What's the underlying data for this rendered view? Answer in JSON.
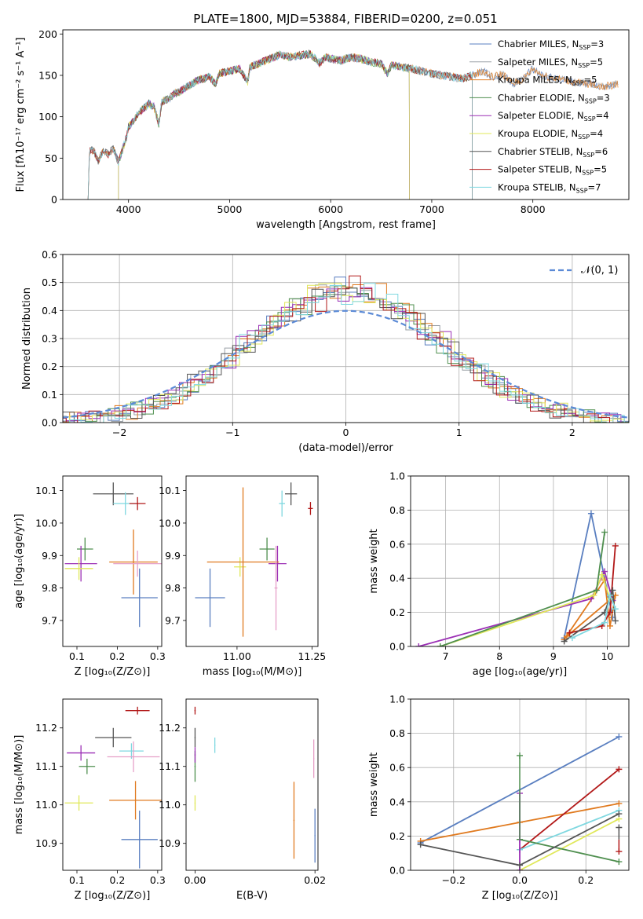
{
  "title": "PLATE=1800, MJD=53884, FIBERID=0200, z=0.051",
  "colors": {
    "chabrier_miles": "#5a7fc0",
    "salpeter_miles": "#9aa0a6",
    "kroupa_miles": "#e07a1f",
    "chabrier_elodie": "#4f8f4f",
    "salpeter_elodie": "#9b2fb5",
    "kroupa_elodie": "#e0e85a",
    "chabrier_stelib": "#555555",
    "salpeter_stelib": "#b21818",
    "kroupa_stelib": "#7fd8e0",
    "normal": "#5b8ad6",
    "pink": "#e6a0c8"
  },
  "chart_data": [
    {
      "type": "line",
      "title": "PLATE=1800, MJD=53884, FIBERID=0200, z=0.051",
      "xlabel": "wavelength [Angstrom, rest frame]",
      "ylabel": "Flux [fλ10⁻¹⁷ erg cm⁻² s⁻¹ A⁻¹]",
      "xlim": [
        3350,
        8950
      ],
      "ylim": [
        0,
        205
      ],
      "xticks": [
        "4000",
        "5000",
        "6000",
        "7000",
        "8000"
      ],
      "yticks": [
        "0",
        "50",
        "100",
        "150",
        "200"
      ],
      "grid": false,
      "legend_position": "top-right",
      "spectrum_points": [
        [
          3610,
          45
        ],
        [
          3620,
          61
        ],
        [
          3660,
          58
        ],
        [
          3700,
          46
        ],
        [
          3750,
          60
        ],
        [
          3800,
          55
        ],
        [
          3850,
          62
        ],
        [
          3900,
          45
        ],
        [
          3940,
          60
        ],
        [
          3980,
          75
        ],
        [
          4000,
          88
        ],
        [
          4050,
          95
        ],
        [
          4100,
          105
        ],
        [
          4150,
          110
        ],
        [
          4200,
          116
        ],
        [
          4250,
          113
        ],
        [
          4300,
          92
        ],
        [
          4330,
          118
        ],
        [
          4400,
          122
        ],
        [
          4450,
          128
        ],
        [
          4500,
          130
        ],
        [
          4600,
          138
        ],
        [
          4700,
          145
        ],
        [
          4800,
          148
        ],
        [
          4860,
          140
        ],
        [
          4900,
          152
        ],
        [
          5000,
          155
        ],
        [
          5100,
          158
        ],
        [
          5180,
          142
        ],
        [
          5200,
          160
        ],
        [
          5300,
          165
        ],
        [
          5400,
          170
        ],
        [
          5500,
          175
        ],
        [
          5600,
          172
        ],
        [
          5700,
          174
        ],
        [
          5800,
          176
        ],
        [
          5890,
          165
        ],
        [
          5950,
          172
        ],
        [
          6000,
          170
        ],
        [
          6100,
          168
        ],
        [
          6200,
          172
        ],
        [
          6300,
          170
        ],
        [
          6400,
          166
        ],
        [
          6500,
          164
        ],
        [
          6563,
          152
        ],
        [
          6600,
          162
        ],
        [
          6700,
          160
        ],
        [
          6800,
          158
        ],
        [
          6900,
          155
        ],
        [
          7000,
          152
        ],
        [
          7100,
          150
        ],
        [
          7200,
          148
        ],
        [
          7300,
          146
        ],
        [
          7400,
          150
        ],
        [
          7500,
          155
        ],
        [
          7600,
          148
        ],
        [
          7700,
          152
        ],
        [
          7800,
          140
        ],
        [
          7900,
          145
        ],
        [
          8000,
          158
        ],
        [
          8100,
          150
        ],
        [
          8200,
          147
        ],
        [
          8300,
          145
        ],
        [
          8400,
          142
        ],
        [
          8500,
          140
        ],
        [
          8600,
          139
        ],
        [
          8700,
          136
        ],
        [
          8850,
          140
        ]
      ],
      "series": [
        {
          "name": "Chabrier MILES, N",
          "sub": "SSP",
          "suffix": "=3",
          "color_key": "chabrier_miles"
        },
        {
          "name": "Salpeter MILES, N",
          "sub": "SSP",
          "suffix": "=5",
          "color_key": "salpeter_miles"
        },
        {
          "name": "Kroupa MILES, N",
          "sub": "SSP",
          "suffix": "=5",
          "color_key": "kroupa_miles"
        },
        {
          "name": "Chabrier ELODIE, N",
          "sub": "SSP",
          "suffix": "=3",
          "color_key": "chabrier_elodie"
        },
        {
          "name": "Salpeter ELODIE, N",
          "sub": "SSP",
          "suffix": "=4",
          "color_key": "salpeter_elodie"
        },
        {
          "name": "Kroupa ELODIE, N",
          "sub": "SSP",
          "suffix": "=4",
          "color_key": "kroupa_elodie"
        },
        {
          "name": "Chabrier STELIB, N",
          "sub": "SSP",
          "suffix": "=6",
          "color_key": "chabrier_stelib"
        },
        {
          "name": "Salpeter STELIB, N",
          "sub": "SSP",
          "suffix": "=5",
          "color_key": "salpeter_stelib"
        },
        {
          "name": "Kroupa STELIB, N",
          "sub": "SSP",
          "suffix": "=7",
          "color_key": "kroupa_stelib"
        }
      ],
      "range_start": {
        "miles": 3600,
        "elodie": 3900,
        "stelib": 3600
      },
      "range_end": {
        "miles": 8900,
        "elodie": 6780,
        "stelib": 7400
      }
    },
    {
      "type": "histogram",
      "xlabel": "(data-model)/error",
      "ylabel": "Normed distribution",
      "xlim": [
        -2.5,
        2.5
      ],
      "ylim": [
        0,
        0.6
      ],
      "xticks": [
        "−2",
        "−1",
        "0",
        "1",
        "2"
      ],
      "yticks": [
        "0.0",
        "0.1",
        "0.2",
        "0.3",
        "0.4",
        "0.5",
        "0.6"
      ],
      "grid": true,
      "legend_label": "𝒩(0, 1)",
      "normal_curve": {
        "mean": 0,
        "sigma": 1
      }
    },
    {
      "type": "scatter",
      "xlabel": "Z [log₁₀(Z/Z⊙)]",
      "ylabel": "age  [log₁₀(age/yr)]",
      "xlim": [
        0.065,
        0.31
      ],
      "ylim": [
        9.62,
        10.145
      ],
      "xticks": [
        "0.1",
        "0.2",
        "0.3"
      ],
      "yticks": [
        "9.7",
        "9.8",
        "9.9",
        "10.0",
        "10.1"
      ],
      "points": [
        {
          "c": "chabrier_stelib",
          "x": 0.19,
          "y": 10.09,
          "ex": 0.05,
          "ey": 0.035
        },
        {
          "c": "kroupa_stelib",
          "x": 0.22,
          "y": 10.06,
          "ex": 0.03,
          "ey": 0.035
        },
        {
          "c": "salpeter_stelib",
          "x": 0.25,
          "y": 10.06,
          "ex": 0.02,
          "ey": 0.02
        },
        {
          "c": "chabrier_elodie",
          "x": 0.12,
          "y": 9.92,
          "ex": 0.02,
          "ey": 0.035
        },
        {
          "c": "salpeter_elodie",
          "x": 0.11,
          "y": 9.875,
          "ex": 0.04,
          "ey": 0.055
        },
        {
          "c": "kroupa_elodie",
          "x": 0.105,
          "y": 9.86,
          "ex": 0.035,
          "ey": 0.035
        },
        {
          "c": "kroupa_miles",
          "x": 0.24,
          "y": 9.88,
          "ex": 0.06,
          "ey": 0.1
        },
        {
          "c": "pink",
          "x": 0.25,
          "y": 9.875,
          "ex": 0.06,
          "ey": 0.04
        },
        {
          "c": "chabrier_miles",
          "x": 0.255,
          "y": 9.77,
          "ex": 0.045,
          "ey": 0.09
        }
      ]
    },
    {
      "type": "scatter",
      "xlabel": "mass [log₁₀(M/M⊙)]",
      "ylabel": "",
      "xlim": [
        10.83,
        11.27
      ],
      "ylim": [
        9.62,
        10.145
      ],
      "xticks": [
        "11.00",
        "11.25"
      ],
      "yticks": [
        "9.7",
        "9.8",
        "9.9",
        "10.0",
        "10.1"
      ],
      "points": [
        {
          "c": "chabrier_stelib",
          "x": 11.18,
          "y": 10.09,
          "ex": 0.02,
          "ey": 0.035
        },
        {
          "c": "kroupa_stelib",
          "x": 11.15,
          "y": 10.06,
          "ex": 0.01,
          "ey": 0.04
        },
        {
          "c": "salpeter_stelib",
          "x": 11.245,
          "y": 10.045,
          "ex": 0.008,
          "ey": 0.02
        },
        {
          "c": "chabrier_elodie",
          "x": 11.1,
          "y": 9.92,
          "ex": 0.025,
          "ey": 0.035
        },
        {
          "c": "salpeter_elodie",
          "x": 11.135,
          "y": 9.875,
          "ex": 0.03,
          "ey": 0.055
        },
        {
          "c": "kroupa_elodie",
          "x": 11.01,
          "y": 9.865,
          "ex": 0.02,
          "ey": 0.03
        },
        {
          "c": "kroupa_miles",
          "x": 11.02,
          "y": 9.88,
          "ex": 0.12,
          "ey": 0.23
        },
        {
          "c": "pink",
          "x": 11.13,
          "y": 9.8,
          "ex": 0.005,
          "ey": 0.13
        },
        {
          "c": "chabrier_miles",
          "x": 10.91,
          "y": 9.77,
          "ex": 0.05,
          "ey": 0.09
        }
      ]
    },
    {
      "type": "line",
      "xlabel": "age  [log₁₀(age/yr)]",
      "ylabel": "mass weight",
      "xlim": [
        6.35,
        10.4
      ],
      "ylim": [
        0,
        1
      ],
      "xticks": [
        "7",
        "8",
        "9",
        "10"
      ],
      "yticks": [
        "0.0",
        "0.2",
        "0.4",
        "0.6",
        "0.8",
        "1.0"
      ],
      "grid": true,
      "series": [
        {
          "c": "chabrier_miles",
          "pts": [
            [
              9.2,
              0.05
            ],
            [
              9.7,
              0.78
            ],
            [
              10.1,
              0.17
            ]
          ]
        },
        {
          "c": "kroupa_miles",
          "pts": [
            [
              9.2,
              0.04
            ],
            [
              9.95,
              0.39
            ],
            [
              10.05,
              0.12
            ],
            [
              10.15,
              0.3
            ],
            [
              9.25,
              0.06
            ]
          ]
        },
        {
          "c": "salpeter_elodie",
          "pts": [
            [
              6.5,
              0.0
            ],
            [
              9.7,
              0.28
            ],
            [
              9.95,
              0.44
            ],
            [
              10.1,
              0.27
            ]
          ]
        },
        {
          "c": "kroupa_elodie",
          "pts": [
            [
              6.9,
              0.0
            ],
            [
              9.75,
              0.3
            ],
            [
              9.9,
              0.42
            ],
            [
              10.05,
              0.28
            ]
          ]
        },
        {
          "c": "chabrier_elodie",
          "pts": [
            [
              6.9,
              0.0
            ],
            [
              9.8,
              0.33
            ],
            [
              9.95,
              0.67
            ]
          ]
        },
        {
          "c": "salpeter_stelib",
          "pts": [
            [
              9.3,
              0.08
            ],
            [
              9.9,
              0.12
            ],
            [
              10.05,
              0.2
            ],
            [
              10.15,
              0.59
            ]
          ]
        },
        {
          "c": "chabrier_stelib",
          "pts": [
            [
              9.2,
              0.03
            ],
            [
              9.95,
              0.2
            ],
            [
              10.1,
              0.33
            ],
            [
              10.15,
              0.15
            ]
          ]
        },
        {
          "c": "kroupa_stelib",
          "pts": [
            [
              9.35,
              0.05
            ],
            [
              9.95,
              0.14
            ],
            [
              10.05,
              0.3
            ],
            [
              10.15,
              0.22
            ]
          ]
        }
      ]
    },
    {
      "type": "scatter",
      "xlabel": "Z [log₁₀(Z/Z⊙)]",
      "ylabel": "mass [log₁₀(M/M⊙)]",
      "xlim": [
        0.065,
        0.31
      ],
      "ylim": [
        10.83,
        11.275
      ],
      "xticks": [
        "0.1",
        "0.2",
        "0.3"
      ],
      "yticks": [
        "10.9",
        "11.0",
        "11.1",
        "11.2"
      ],
      "points": [
        {
          "c": "salpeter_stelib",
          "x": 0.25,
          "y": 11.245,
          "ex": 0.03,
          "ey": 0.01
        },
        {
          "c": "chabrier_stelib",
          "x": 0.19,
          "y": 11.175,
          "ex": 0.045,
          "ey": 0.025
        },
        {
          "c": "kroupa_stelib",
          "x": 0.235,
          "y": 11.14,
          "ex": 0.03,
          "ey": 0.02
        },
        {
          "c": "salpeter_elodie",
          "x": 0.11,
          "y": 11.135,
          "ex": 0.035,
          "ey": 0.02
        },
        {
          "c": "pink",
          "x": 0.24,
          "y": 11.125,
          "ex": 0.065,
          "ey": 0.04
        },
        {
          "c": "chabrier_elodie",
          "x": 0.125,
          "y": 11.1,
          "ex": 0.02,
          "ey": 0.02
        },
        {
          "c": "kroupa_elodie",
          "x": 0.105,
          "y": 11.005,
          "ex": 0.035,
          "ey": 0.02
        },
        {
          "c": "kroupa_miles",
          "x": 0.245,
          "y": 11.012,
          "ex": 0.065,
          "ey": 0.05
        },
        {
          "c": "chabrier_miles",
          "x": 0.255,
          "y": 10.91,
          "ex": 0.045,
          "ey": 0.075
        }
      ]
    },
    {
      "type": "scatter",
      "xlabel": "E(B-V)",
      "ylabel": "",
      "xlim": [
        -0.0015,
        0.0205
      ],
      "ylim": [
        10.83,
        11.275
      ],
      "xticks": [
        "0.00",
        "0.02"
      ],
      "yticks": [
        "10.9",
        "11.0",
        "11.1",
        "11.2"
      ],
      "points": [
        {
          "c": "salpeter_stelib",
          "x": 0.0,
          "y": 11.245,
          "ex": 0,
          "ey": 0.01
        },
        {
          "c": "chabrier_stelib",
          "x": 0.0,
          "y": 11.175,
          "ex": 0,
          "ey": 0.025
        },
        {
          "c": "kroupa_stelib",
          "x": 0.0033,
          "y": 11.155,
          "ex": 0,
          "ey": 0.02
        },
        {
          "c": "chabrier_elodie",
          "x": 0.0,
          "y": 11.1,
          "ex": 0,
          "ey": 0.04
        },
        {
          "c": "salpeter_elodie",
          "x": 0.0,
          "y": 11.13,
          "ex": 0,
          "ey": 0.02
        },
        {
          "c": "kroupa_elodie",
          "x": 0.0,
          "y": 11.005,
          "ex": 0,
          "ey": 0.02
        },
        {
          "c": "kroupa_miles",
          "x": 0.0165,
          "y": 10.96,
          "ex": 0,
          "ey": 0.1
        },
        {
          "c": "pink",
          "x": 0.0198,
          "y": 11.12,
          "ex": 0,
          "ey": 0.05
        },
        {
          "c": "chabrier_miles",
          "x": 0.02,
          "y": 10.92,
          "ex": 0,
          "ey": 0.07
        }
      ]
    },
    {
      "type": "line",
      "xlabel": "Z [log₁₀(Z/Z⊙)]",
      "ylabel": "mass weight",
      "xlim": [
        -0.33,
        0.33
      ],
      "ylim": [
        0,
        1
      ],
      "xticks": [
        "−0.2",
        "0.0",
        "0.2"
      ],
      "yticks": [
        "0.0",
        "0.2",
        "0.4",
        "0.6",
        "0.8",
        "1.0"
      ],
      "grid": true,
      "series": [
        {
          "c": "chabrier_miles",
          "pts": [
            [
              -0.3,
              0.16
            ],
            [
              0.3,
              0.78
            ]
          ]
        },
        {
          "c": "kroupa_miles",
          "pts": [
            [
              -0.3,
              0.17
            ],
            [
              0.0,
              0.28
            ],
            [
              0.3,
              0.39
            ]
          ]
        },
        {
          "c": "salpeter_stelib",
          "pts": [
            [
              0.0,
              0.12
            ],
            [
              0.3,
              0.59
            ]
          ]
        },
        {
          "c": "kroupa_stelib",
          "pts": [
            [
              0.0,
              0.12
            ],
            [
              0.3,
              0.35
            ]
          ]
        },
        {
          "c": "kroupa_elodie",
          "pts": [
            [
              0.0,
              0.0
            ],
            [
              0.3,
              0.3
            ]
          ]
        },
        {
          "c": "chabrier_elodie",
          "pts": [
            [
              0.0,
              0.18
            ],
            [
              0.3,
              0.05
            ]
          ]
        },
        {
          "c": "salpeter_elodie",
          "pts": [
            [
              0.0,
              0.45
            ],
            [
              0.0,
              0.0
            ]
          ]
        },
        {
          "c": "chabrier_stelib",
          "pts": [
            [
              -0.3,
              0.15
            ],
            [
              0.0,
              0.03
            ],
            [
              0.3,
              0.33
            ]
          ]
        }
      ],
      "extra_markers": [
        {
          "c": "chabrier_elodie",
          "x": 0.0,
          "y": 0.67
        },
        {
          "c": "salpeter_stelib",
          "x": 0.3,
          "y": 0.11
        },
        {
          "c": "chabrier_stelib",
          "x": 0.3,
          "y": 0.25
        }
      ]
    }
  ]
}
